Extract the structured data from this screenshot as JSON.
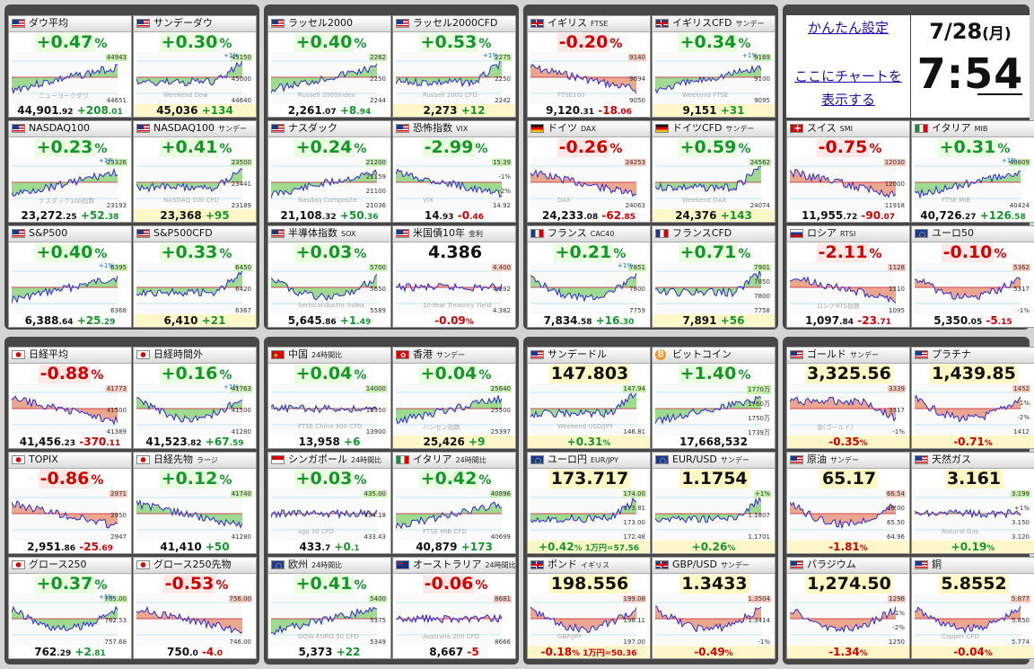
{
  "settings": {
    "link_label": "かんたん設定",
    "chart_link_lines": [
      "ここにチャートを",
      "表示する"
    ]
  },
  "clock": {
    "date_main": "7/28",
    "date_dow": "(月)",
    "time": "7:54"
  },
  "colors": {
    "background": "#d4d4d4",
    "group_bg": "#474747",
    "up": "#15962b",
    "down": "#d10000",
    "area_green": "#8fd47a",
    "area_red": "#e8967a",
    "line": "#2a2adf"
  },
  "markets": [
    {
      "id": "dow",
      "flag": "us",
      "name": "ダウ平均",
      "sub": "",
      "pct": "+0.47",
      "dir": "up",
      "bottom_main": "44,901",
      "bottom_dec": ".92",
      "bottom_chg": "+208",
      "bottom_chg_dec": ".01",
      "labels": [
        "44943",
        "44651"
      ],
      "plus1": false,
      "trend": "up",
      "watermark": "ニューヨークダウ"
    },
    {
      "id": "sunday_dow",
      "flag": "us",
      "name": "サンデーダウ",
      "sub": "",
      "pct": "+0.30",
      "dir": "up",
      "bottom_main": "45,036",
      "bottom_dec": "",
      "bottom_chg": "+134",
      "bottom_chg_dec": "",
      "labels": [
        "45150",
        "45000",
        "44640"
      ],
      "plus1": true,
      "trend": "flat_up",
      "watermark": "Weekend Dow",
      "bottom_yellow": true
    },
    {
      "id": "russell",
      "flag": "us",
      "name": "ラッセル2000",
      "sub": "",
      "pct": "+0.40",
      "dir": "up",
      "bottom_main": "2,261",
      "bottom_dec": ".07",
      "bottom_chg": "+8",
      "bottom_chg_dec": ".94",
      "labels": [
        "2262",
        "2250",
        "2244"
      ],
      "plus1": false,
      "trend": "up",
      "watermark": "Russell 2000Index"
    },
    {
      "id": "russell_cfd",
      "flag": "us",
      "name": "ラッセル2000CFD",
      "sub": "",
      "pct": "+0.53",
      "dir": "up",
      "bottom_main": "2,273",
      "bottom_dec": "",
      "bottom_chg": "+12",
      "bottom_chg_dec": "",
      "labels": [
        "2275",
        "2250",
        "2242"
      ],
      "plus1": true,
      "trend": "flat_up",
      "watermark": "Russell 2000 CFD",
      "bottom_yellow": true
    },
    {
      "id": "ftse",
      "flag": "uk",
      "name": "イギリス",
      "sub": "FTSE",
      "pct": "-0.20",
      "dir": "dn",
      "bottom_main": "9,120",
      "bottom_dec": ".31",
      "bottom_chg": "-18",
      "bottom_chg_dec": ".06",
      "labels": [
        "9140",
        "9094",
        "9050"
      ],
      "plus1": false,
      "trend": "down",
      "watermark": "FTSE100"
    },
    {
      "id": "uk_cfd",
      "flag": "uk",
      "name": "イギリスCFD",
      "sub": "サンデー",
      "pct": "+0.34",
      "dir": "up",
      "bottom_main": "9,151",
      "bottom_dec": "",
      "bottom_chg": "+31",
      "bottom_chg_dec": "",
      "labels": [
        "9169",
        "9100",
        "9095"
      ],
      "plus1": true,
      "trend": "up",
      "watermark": "Weekend FTSE",
      "bottom_yellow": true
    },
    {
      "id": "nasdaq100",
      "flag": "us",
      "name": "NASDAQ100",
      "sub": "",
      "pct": "+0.23",
      "dir": "up",
      "bottom_main": "23,272",
      "bottom_dec": ".25",
      "bottom_chg": "+52",
      "bottom_chg_dec": ".38",
      "labels": [
        "23326",
        "23193"
      ],
      "plus1": true,
      "trend": "up",
      "watermark": "ナスダック100指数"
    },
    {
      "id": "nasdaq100_sun",
      "flag": "us",
      "name": "NASDAQ100",
      "sub": "サンデー",
      "pct": "+0.41",
      "dir": "up",
      "bottom_main": "23,368",
      "bottom_dec": "",
      "bottom_chg": "+95",
      "bottom_chg_dec": "",
      "labels": [
        "23500",
        "23441",
        "23189"
      ],
      "plus1": false,
      "trend": "flat_up",
      "watermark": "NASDAQ 100 CFD",
      "bottom_yellow": true
    },
    {
      "id": "nasdaq",
      "flag": "us",
      "name": "ナスダック",
      "sub": "",
      "pct": "+0.24",
      "dir": "up",
      "bottom_main": "21,108",
      "bottom_dec": ".32",
      "bottom_chg": "+50",
      "bottom_chg_dec": ".36",
      "labels": [
        "21200",
        "21159",
        "21100",
        "21036"
      ],
      "plus1": false,
      "trend": "up",
      "watermark": "Nasdaq Composite"
    },
    {
      "id": "vix",
      "flag": "us",
      "name": "恐怖指数",
      "sub": "VIX",
      "pct": "-2.99",
      "dir": "up",
      "bottom_main": "14",
      "bottom_dec": ".93",
      "bottom_chg": "-0",
      "bottom_chg_dec": ".46",
      "labels": [
        "15.39",
        "-1%",
        "-2%",
        "14.92"
      ],
      "plus1": false,
      "trend": "down",
      "watermark": "VIX"
    },
    {
      "id": "dax",
      "flag": "de",
      "name": "ドイツ",
      "sub": "DAX",
      "pct": "-0.26",
      "dir": "dn",
      "bottom_main": "24,233",
      "bottom_dec": ".08",
      "bottom_chg": "-62",
      "bottom_chg_dec": ".85",
      "labels": [
        "24253",
        "24063"
      ],
      "plus1": false,
      "trend": "down",
      "watermark": "DAX"
    },
    {
      "id": "dax_cfd",
      "flag": "de",
      "name": "ドイツCFD",
      "sub": "サンデー",
      "pct": "+0.59",
      "dir": "up",
      "bottom_main": "24,376",
      "bottom_dec": "",
      "bottom_chg": "+143",
      "bottom_chg_dec": "",
      "labels": [
        "24562",
        "24074"
      ],
      "plus1": false,
      "trend": "flat_up",
      "watermark": "Weekend DAX",
      "bottom_yellow": true
    },
    {
      "id": "smi",
      "flag": "ch",
      "name": "スイス",
      "sub": "SMI",
      "pct": "-0.75",
      "dir": "dn",
      "bottom_main": "11,955",
      "bottom_dec": ".72",
      "bottom_chg": "-90",
      "bottom_chg_dec": ".07",
      "labels": [
        "12030",
        "12000",
        "11918"
      ],
      "plus1": false,
      "trend": "down",
      "watermark": ""
    },
    {
      "id": "mib",
      "flag": "it",
      "name": "イタリア",
      "sub": "MIB",
      "pct": "+0.31",
      "dir": "up",
      "bottom_main": "40,726",
      "bottom_dec": ".27",
      "bottom_chg": "+126",
      "bottom_chg_dec": ".58",
      "labels": [
        "40809",
        "40424"
      ],
      "plus1": true,
      "trend": "up",
      "watermark": "FTSE MIB"
    },
    {
      "id": "sp500",
      "flag": "us",
      "name": "S&P500",
      "sub": "",
      "pct": "+0.40",
      "dir": "up",
      "bottom_main": "6,388",
      "bottom_dec": ".64",
      "bottom_chg": "+25",
      "bottom_chg_dec": ".29",
      "labels": [
        "6395",
        "6368"
      ],
      "plus1": true,
      "trend": "up",
      "watermark": ""
    },
    {
      "id": "sp500_cfd",
      "flag": "us",
      "name": "S&P500CFD",
      "sub": "",
      "pct": "+0.33",
      "dir": "up",
      "bottom_main": "6,410",
      "bottom_dec": "",
      "bottom_chg": "+21",
      "bottom_chg_dec": "",
      "labels": [
        "6450",
        "6420",
        "6367"
      ],
      "plus1": false,
      "trend": "flat_up",
      "watermark": "",
      "bottom_yellow": true
    },
    {
      "id": "sox",
      "flag": "us",
      "name": "半導体指数",
      "sub": "SOX",
      "pct": "+0.03",
      "dir": "up",
      "bottom_main": "5,645",
      "bottom_dec": ".86",
      "bottom_chg": "+1",
      "bottom_chg_dec": ".49",
      "labels": [
        "5700",
        "5650",
        "5589"
      ],
      "plus1": false,
      "trend": "down_up",
      "watermark": "Semiconductor Index"
    },
    {
      "id": "us10y",
      "flag": "us",
      "name": "米国債10年",
      "sub": "金利",
      "pct": "4.386",
      "dir": "blk",
      "bottom_main": "",
      "bottom_dec": "",
      "bottom_chg": "-0.09",
      "bottom_chg_dec": "%",
      "labels": [
        "4.400",
        "4.392",
        "4.382"
      ],
      "plus1": false,
      "trend": "flat",
      "watermark": "10-Year Treasury Yield"
    },
    {
      "id": "cac40",
      "flag": "fr",
      "name": "フランス",
      "sub": "CAC40",
      "pct": "+0.21",
      "dir": "up",
      "bottom_main": "7,834",
      "bottom_dec": ".58",
      "bottom_chg": "+16",
      "bottom_chg_dec": ".30",
      "labels": [
        "7851",
        "7800",
        "7759"
      ],
      "plus1": true,
      "trend": "down_up",
      "watermark": ""
    },
    {
      "id": "france_cfd",
      "flag": "fr",
      "name": "フランスCFD",
      "sub": "",
      "pct": "+0.71",
      "dir": "up",
      "bottom_main": "7,891",
      "bottom_dec": "",
      "bottom_chg": "+56",
      "bottom_chg_dec": "",
      "labels": [
        "7901",
        "7850",
        "7800",
        "7758"
      ],
      "plus1": false,
      "trend": "flat_up",
      "watermark": "",
      "bottom_yellow": true
    },
    {
      "id": "rtsi",
      "flag": "ru",
      "name": "ロシア",
      "sub": "RTSI",
      "pct": "-2.11",
      "dir": "dn",
      "bottom_main": "1,097",
      "bottom_dec": ".84",
      "bottom_chg": "-23",
      "bottom_chg_dec": ".71",
      "labels": [
        "1128",
        "1110",
        "1095"
      ],
      "plus1": false,
      "trend": "down",
      "watermark": "ロシアRTS指数"
    },
    {
      "id": "euro50",
      "flag": "eu",
      "name": "ユーロ50",
      "sub": "",
      "pct": "-0.10",
      "dir": "dn",
      "bottom_main": "5,350",
      "bottom_dec": ".05",
      "bottom_chg": "-5",
      "bottom_chg_dec": ".15",
      "labels": [
        "5362",
        "5317",
        "-1%"
      ],
      "plus1": false,
      "trend": "down_up",
      "watermark": ""
    },
    {
      "id": "nikkei",
      "flag": "jp",
      "name": "日経平均",
      "sub": "",
      "pct": "-0.88",
      "dir": "dn",
      "bottom_main": "41,456",
      "bottom_dec": ".23",
      "bottom_chg": "-370",
      "bottom_chg_dec": ".11",
      "labels": [
        "41773",
        "41500",
        "41389"
      ],
      "plus1": false,
      "trend": "down",
      "watermark": ""
    },
    {
      "id": "nikkei_after",
      "flag": "jp",
      "name": "日経時間外",
      "sub": "",
      "pct": "+0.16",
      "dir": "up",
      "bottom_main": "41,523",
      "bottom_dec": ".82",
      "bottom_chg": "+67",
      "bottom_chg_dec": ".59",
      "labels": [
        "41763",
        "41500",
        "41280"
      ],
      "plus1": true,
      "trend": "down_up",
      "watermark": ""
    },
    {
      "id": "china",
      "flag": "cn",
      "name": "中国",
      "sub": "24時間比",
      "pct": "+0.04",
      "dir": "up",
      "bottom_main": "13,958",
      "bottom_dec": "",
      "bottom_chg": "+6",
      "bottom_chg_dec": "",
      "labels": [
        "14000",
        "13950",
        "13900"
      ],
      "plus1": false,
      "trend": "flat",
      "watermark": "FTSE China 300 CFD"
    },
    {
      "id": "hk",
      "flag": "hk",
      "name": "香港",
      "sub": "サンデー",
      "pct": "+0.04",
      "dir": "up",
      "bottom_main": "25,426",
      "bottom_dec": "",
      "bottom_chg": "+9",
      "bottom_chg_dec": "",
      "labels": [
        "25640",
        "25500",
        "25397"
      ],
      "plus1": false,
      "trend": "up",
      "watermark": "ハンセン指数",
      "bottom_yellow": true
    },
    {
      "id": "topix",
      "flag": "jp",
      "name": "TOPIX",
      "sub": "",
      "pct": "-0.86",
      "dir": "dn",
      "bottom_main": "2,951",
      "bottom_dec": ".86",
      "bottom_chg": "-25",
      "bottom_chg_dec": ".69",
      "labels": [
        "2971",
        "2950",
        "2947"
      ],
      "plus1": false,
      "trend": "down",
      "watermark": ""
    },
    {
      "id": "nikkei_fut",
      "flag": "jp",
      "name": "日経先物",
      "sub": "ラージ",
      "pct": "+0.12",
      "dir": "up",
      "bottom_main": "41,410",
      "bottom_dec": "",
      "bottom_chg": "+50",
      "bottom_chg_dec": "",
      "labels": [
        "41740",
        "41280"
      ],
      "plus1": false,
      "trend": "down",
      "watermark": ""
    },
    {
      "id": "sg",
      "flag": "sg",
      "name": "シンガポール",
      "sub": "24時間比",
      "pct": "+0.03",
      "dir": "up",
      "bottom_main": "433",
      "bottom_dec": ".7",
      "bottom_chg": "+0",
      "bottom_chg_dec": ".1",
      "labels": [
        "435.00",
        "434.18",
        "433.43"
      ],
      "plus1": false,
      "trend": "flat",
      "watermark": "sgp 30 CFD"
    },
    {
      "id": "italy",
      "flag": "it",
      "name": "イタリア",
      "sub": "24時間比",
      "pct": "+0.42",
      "dir": "up",
      "bottom_main": "40,879",
      "bottom_dec": "",
      "bottom_chg": "+173",
      "bottom_chg_dec": "",
      "labels": [
        "40896",
        "40699"
      ],
      "plus1": false,
      "trend": "up",
      "watermark": "FTSE MIB CFD"
    },
    {
      "id": "growth250",
      "flag": "jp",
      "name": "グロース250",
      "sub": "",
      "pct": "+0.37",
      "dir": "up",
      "bottom_main": "762",
      "bottom_dec": ".29",
      "bottom_chg": "+2",
      "bottom_chg_dec": ".81",
      "labels": [
        "765.00",
        "762.53",
        "757.68"
      ],
      "plus1": true,
      "trend": "down_up",
      "watermark": ""
    },
    {
      "id": "growth250_fut",
      "flag": "jp",
      "name": "グロース250先物",
      "sub": "",
      "pct": "-0.53",
      "dir": "dn",
      "bottom_main": "750",
      "bottom_dec": ".0",
      "bottom_chg": "-4",
      "bottom_chg_dec": ".0",
      "labels": [
        "756.00",
        "746.00"
      ],
      "plus1": false,
      "trend": "down",
      "watermark": ""
    },
    {
      "id": "europe",
      "flag": "eu",
      "name": "欧州",
      "sub": "24時間比",
      "pct": "+0.41",
      "dir": "up",
      "bottom_main": "5,373",
      "bottom_dec": "",
      "bottom_chg": "+22",
      "bottom_chg_dec": "",
      "labels": [
        "5400",
        "5375",
        "5349"
      ],
      "plus1": false,
      "trend": "up",
      "watermark": "DOW EURO 50 CFD"
    },
    {
      "id": "australia",
      "flag": "au",
      "name": "オーストラリア",
      "sub": "24時間比",
      "pct": "-0.06",
      "dir": "dn",
      "bottom_main": "8,667",
      "bottom_dec": "",
      "bottom_chg": "-5",
      "bottom_chg_dec": "",
      "labels": [
        "8681",
        "8666"
      ],
      "plus1": false,
      "trend": "flat",
      "watermark": "Australia 200 CFD"
    },
    {
      "id": "usdjpy",
      "flag": "us",
      "name": "サンデードル",
      "sub": "",
      "pct": "147.803",
      "pct_dec_split": true,
      "dir": "blk",
      "bottom_main": "",
      "bottom_dec": "",
      "bottom_chg": "+0.31",
      "bottom_chg_dec": "%",
      "labels": [
        "147.94",
        "146.81"
      ],
      "plus1": false,
      "trend": "flat_up",
      "watermark": "Weekend USD/JPY",
      "bottom_yellow": true,
      "big_hl": "yellow"
    },
    {
      "id": "btc",
      "flag": "btc",
      "name": "ビットコイン",
      "sub": "",
      "pct": "+1.40",
      "dir": "up",
      "bottom_main": "17,668,532",
      "bottom_dec": "",
      "bottom_chg": "",
      "bottom_chg_dec": "",
      "labels": [
        "1770万",
        "1760万",
        "1750万",
        "1739万"
      ],
      "plus1": false,
      "trend": "up",
      "watermark": ""
    },
    {
      "id": "gold",
      "flag": "us",
      "name": "ゴールド",
      "sub": "サンデー",
      "pct": "3,325.56",
      "dir": "blk",
      "bottom_main": "",
      "bottom_dec": "",
      "bottom_chg": "-0.35",
      "bottom_chg_dec": "%",
      "labels": [
        "3339",
        "3317",
        "-1%"
      ],
      "plus1": false,
      "trend": "flat_down",
      "watermark": "金(ゴールド)",
      "bottom_yellow": true,
      "big_hl": "yellow"
    },
    {
      "id": "platinum",
      "flag": "us",
      "name": "プラチナ",
      "sub": "",
      "pct": "1,439.85",
      "dir": "blk",
      "bottom_main": "",
      "bottom_dec": "",
      "bottom_chg": "-0.71",
      "bottom_chg_dec": "%",
      "labels": [
        "1452",
        "-1%",
        "-2%",
        "1412"
      ],
      "plus1": false,
      "trend": "down_up",
      "watermark": "",
      "bottom_yellow": true,
      "big_hl": "yellow"
    },
    {
      "id": "eurjpy",
      "flag": "eu",
      "name": "ユーロ円",
      "sub": "EUR/JPY",
      "pct": "173.717",
      "dir": "blk",
      "bottom_main": "",
      "bottom_dec": "",
      "bottom_chg": "+0.42",
      "bottom_chg_dec": "%  1万円=57.56",
      "labels": [
        "174.00",
        "173.81",
        "173.00",
        "172.48"
      ],
      "plus1": false,
      "trend": "flat_up",
      "watermark": "",
      "bottom_yellow": true,
      "big_hl": "yellow"
    },
    {
      "id": "eurusd",
      "flag": "eu",
      "name": "EUR/USD",
      "sub": "サンデー",
      "pct": "1.1754",
      "dir": "blk",
      "bottom_main": "",
      "bottom_dec": "",
      "bottom_chg": "+0.26",
      "bottom_chg_dec": "%",
      "labels": [
        "+1%",
        "1.1807",
        "1.1701"
      ],
      "plus1": false,
      "trend": "flat_up",
      "watermark": "",
      "bottom_yellow": true,
      "big_hl": "yellow"
    },
    {
      "id": "oil",
      "flag": "us",
      "name": "原油",
      "sub": "サンデー",
      "pct": "65.17",
      "dir": "blk",
      "bottom_main": "",
      "bottom_dec": "",
      "bottom_chg": "-1.81",
      "bottom_chg_dec": "%",
      "labels": [
        "66.54",
        "66.00",
        "65.50",
        "64.96"
      ],
      "plus1": false,
      "trend": "down_up",
      "watermark": "",
      "bottom_yellow": true,
      "big_hl": "yellow"
    },
    {
      "id": "natgas",
      "flag": "us",
      "name": "天然ガス",
      "sub": "",
      "pct": "3.161",
      "dir": "blk",
      "bottom_main": "",
      "bottom_dec": "",
      "bottom_chg": "+0.19",
      "bottom_chg_dec": "%",
      "labels": [
        "3.199",
        "+1%",
        "3.150",
        "3.120"
      ],
      "plus1": false,
      "trend": "flat",
      "watermark": "Natural Gas",
      "bottom_yellow": true,
      "big_hl": "yellow"
    },
    {
      "id": "gbpjpy",
      "flag": "uk",
      "name": "ポンド",
      "sub": "イギリス",
      "pct": "198.556",
      "dir": "blk",
      "bottom_main": "",
      "bottom_dec": "",
      "bottom_chg": "-0.18",
      "bottom_chg_dec": "%  1万円=50.36",
      "labels": [
        "199.08",
        "198.11",
        "197.00"
      ],
      "plus1": false,
      "trend": "down_up",
      "watermark": "GBP/JPY",
      "bottom_yellow": true,
      "big_hl": "yellow"
    },
    {
      "id": "gbpusd",
      "flag": "uk",
      "name": "GBP/USD",
      "sub": "サンデー",
      "pct": "1.3433",
      "dir": "blk",
      "bottom_main": "",
      "bottom_dec": "",
      "bottom_chg": "-0.49",
      "bottom_chg_dec": "%",
      "labels": [
        "1.3504",
        "1.3414",
        "-1%"
      ],
      "plus1": false,
      "trend": "down_up",
      "watermark": "",
      "bottom_yellow": true,
      "big_hl": "yellow"
    },
    {
      "id": "palladium",
      "flag": "us",
      "name": "パラジウム",
      "sub": "",
      "pct": "1,274.50",
      "dir": "blk",
      "bottom_main": "",
      "bottom_dec": "",
      "bottom_chg": "-1.34",
      "bottom_chg_dec": "%",
      "labels": [
        "1296",
        "-1%",
        "-2%",
        "1250"
      ],
      "plus1": false,
      "trend": "down_up",
      "watermark": "",
      "bottom_yellow": true,
      "big_hl": "yellow"
    },
    {
      "id": "copper",
      "flag": "us",
      "name": "銅",
      "sub": "",
      "pct": "5.8552",
      "dir": "blk",
      "bottom_main": "",
      "bottom_dec": "",
      "bottom_chg": "-0.04",
      "bottom_chg_dec": "%",
      "labels": [
        "5.877",
        "5.850",
        "5.774"
      ],
      "plus1": false,
      "trend": "down_up",
      "watermark": "Copper CFD",
      "bottom_yellow": true,
      "big_hl": "yellow"
    }
  ]
}
